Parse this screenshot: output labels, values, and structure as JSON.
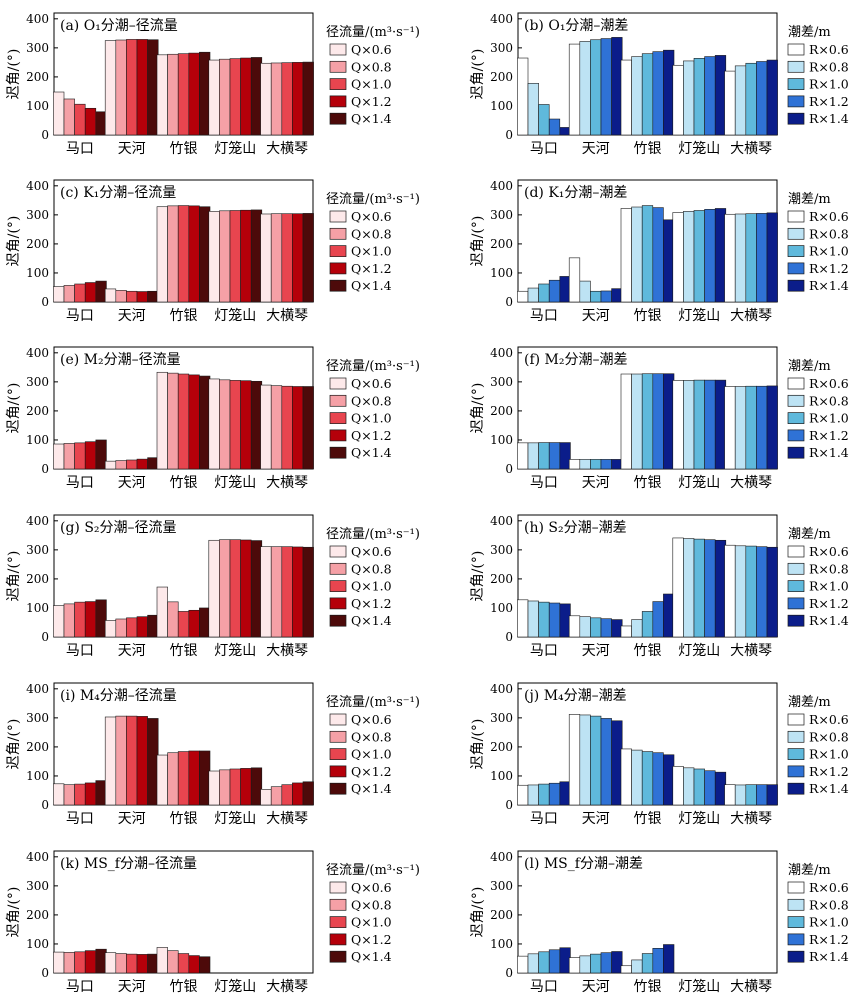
{
  "y_axis_label": "迟角/(°)",
  "y_ticks": [
    "0",
    "100",
    "200",
    "300",
    "400"
  ],
  "legends": {
    "Q": {
      "title": "径流量/(m³·s⁻¹)",
      "items": [
        "Q×0.6",
        "Q×0.8",
        "Q×1.0",
        "Q×1.2",
        "Q×1.4"
      ],
      "colors": [
        "#fde9ea",
        "#f5a0a6",
        "#e8454f",
        "#b5000a",
        "#4d0a0a"
      ]
    },
    "R": {
      "title": "潮差/m",
      "items": [
        "R×0.6",
        "R×0.8",
        "R×1.0",
        "R×1.2",
        "R×1.4"
      ],
      "colors": [
        "#ffffff",
        "#bde3f4",
        "#5fb9dc",
        "#2f72d6",
        "#0b1d8a"
      ]
    }
  },
  "chart_data": [
    {
      "type": "bar",
      "title": "(a) O₁分潮–径流量",
      "legend": "Q",
      "categories": [
        "马口",
        "天河",
        "竹银",
        "灯笼山",
        "大横琴"
      ],
      "ylim": [
        0,
        420
      ],
      "series": [
        {
          "name": "Q×0.6",
          "values": [
            148,
            325,
            276,
            258,
            247
          ]
        },
        {
          "name": "Q×0.8",
          "values": [
            124,
            327,
            278,
            261,
            248
          ]
        },
        {
          "name": "Q×1.0",
          "values": [
            106,
            329,
            280,
            263,
            249
          ]
        },
        {
          "name": "Q×1.2",
          "values": [
            92,
            329,
            282,
            265,
            250
          ]
        },
        {
          "name": "Q×1.4",
          "values": [
            80,
            328,
            285,
            267,
            251
          ]
        }
      ]
    },
    {
      "type": "bar",
      "title": "(b) O₁分潮–潮差",
      "legend": "R",
      "categories": [
        "马口",
        "天河",
        "竹银",
        "灯笼山",
        "大横琴"
      ],
      "ylim": [
        0,
        420
      ],
      "series": [
        {
          "name": "R×0.6",
          "values": [
            265,
            313,
            258,
            240,
            220
          ]
        },
        {
          "name": "R×0.8",
          "values": [
            178,
            322,
            270,
            255,
            238
          ]
        },
        {
          "name": "R×1.0",
          "values": [
            105,
            328,
            280,
            264,
            247
          ]
        },
        {
          "name": "R×1.2",
          "values": [
            55,
            332,
            287,
            270,
            253
          ]
        },
        {
          "name": "R×1.4",
          "values": [
            26,
            336,
            292,
            274,
            258
          ]
        }
      ]
    },
    {
      "type": "bar",
      "title": "(c) K₁分潮–径流量",
      "legend": "Q",
      "categories": [
        "马口",
        "天河",
        "竹银",
        "灯笼山",
        "大横琴"
      ],
      "ylim": [
        0,
        420
      ],
      "series": [
        {
          "name": "Q×0.6",
          "values": [
            53,
            45,
            328,
            312,
            303
          ]
        },
        {
          "name": "Q×0.8",
          "values": [
            57,
            40,
            331,
            314,
            304
          ]
        },
        {
          "name": "Q×1.0",
          "values": [
            62,
            37,
            332,
            315,
            304
          ]
        },
        {
          "name": "Q×1.2",
          "values": [
            67,
            36,
            331,
            316,
            304
          ]
        },
        {
          "name": "Q×1.4",
          "values": [
            72,
            37,
            328,
            317,
            305
          ]
        }
      ]
    },
    {
      "type": "bar",
      "title": "(d) K₁分潮–潮差",
      "legend": "R",
      "categories": [
        "马口",
        "天河",
        "竹银",
        "灯笼山",
        "大横琴"
      ],
      "ylim": [
        0,
        420
      ],
      "series": [
        {
          "name": "R×0.6",
          "values": [
            37,
            152,
            322,
            308,
            302
          ]
        },
        {
          "name": "R×0.8",
          "values": [
            48,
            72,
            327,
            312,
            303
          ]
        },
        {
          "name": "R×1.0",
          "values": [
            62,
            37,
            332,
            315,
            304
          ]
        },
        {
          "name": "R×1.2",
          "values": [
            75,
            38,
            325,
            319,
            305
          ]
        },
        {
          "name": "R×1.4",
          "values": [
            88,
            46,
            283,
            322,
            307
          ]
        }
      ]
    },
    {
      "type": "bar",
      "title": "(e) M₂分潮–径流量",
      "legend": "Q",
      "categories": [
        "马口",
        "天河",
        "竹银",
        "灯笼山",
        "大横琴"
      ],
      "ylim": [
        0,
        420
      ],
      "series": [
        {
          "name": "Q×0.6",
          "values": [
            86,
            27,
            333,
            310,
            289
          ]
        },
        {
          "name": "Q×0.8",
          "values": [
            88,
            29,
            330,
            307,
            287
          ]
        },
        {
          "name": "Q×1.0",
          "values": [
            90,
            31,
            327,
            305,
            285
          ]
        },
        {
          "name": "Q×1.2",
          "values": [
            94,
            34,
            324,
            304,
            284
          ]
        },
        {
          "name": "Q×1.4",
          "values": [
            100,
            39,
            320,
            302,
            284
          ]
        }
      ]
    },
    {
      "type": "bar",
      "title": "(f) M₂分潮–潮差",
      "legend": "R",
      "categories": [
        "马口",
        "天河",
        "竹银",
        "灯笼山",
        "大横琴"
      ],
      "ylim": [
        0,
        420
      ],
      "series": [
        {
          "name": "R×0.6",
          "values": [
            90,
            33,
            327,
            305,
            284
          ]
        },
        {
          "name": "R×0.8",
          "values": [
            90,
            33,
            327,
            305,
            284
          ]
        },
        {
          "name": "R×1.0",
          "values": [
            91,
            33,
            328,
            306,
            285
          ]
        },
        {
          "name": "R×1.2",
          "values": [
            91,
            33,
            328,
            306,
            285
          ]
        },
        {
          "name": "R×1.4",
          "values": [
            91,
            33,
            328,
            306,
            286
          ]
        }
      ]
    },
    {
      "type": "bar",
      "title": "(g) S₂分潮–径流量",
      "legend": "Q",
      "categories": [
        "马口",
        "天河",
        "竹银",
        "灯笼山",
        "大横琴"
      ],
      "ylim": [
        0,
        420
      ],
      "series": [
        {
          "name": "Q×0.6",
          "values": [
            108,
            57,
            172,
            333,
            311
          ]
        },
        {
          "name": "Q×0.8",
          "values": [
            114,
            62,
            121,
            335,
            311
          ]
        },
        {
          "name": "Q×1.0",
          "values": [
            120,
            66,
            88,
            335,
            311
          ]
        },
        {
          "name": "Q×1.2",
          "values": [
            122,
            70,
            92,
            334,
            310
          ]
        },
        {
          "name": "Q×1.4",
          "values": [
            128,
            75,
            100,
            332,
            309
          ]
        }
      ]
    },
    {
      "type": "bar",
      "title": "(h) S₂分潮–潮差",
      "legend": "R",
      "categories": [
        "马口",
        "天河",
        "竹银",
        "灯笼山",
        "大横琴"
      ],
      "ylim": [
        0,
        420
      ],
      "series": [
        {
          "name": "R×0.6",
          "values": [
            128,
            73,
            38,
            341,
            316
          ]
        },
        {
          "name": "R×0.8",
          "values": [
            124,
            70,
            60,
            339,
            314
          ]
        },
        {
          "name": "R×1.0",
          "values": [
            120,
            66,
            88,
            337,
            313
          ]
        },
        {
          "name": "R×1.2",
          "values": [
            117,
            63,
            122,
            335,
            311
          ]
        },
        {
          "name": "R×1.4",
          "values": [
            114,
            60,
            148,
            333,
            309
          ]
        }
      ]
    },
    {
      "type": "bar",
      "title": "(i) M₄分潮–径流量",
      "legend": "Q",
      "categories": [
        "马口",
        "天河",
        "竹银",
        "灯笼山",
        "大横琴"
      ],
      "ylim": [
        0,
        420
      ],
      "series": [
        {
          "name": "Q×0.6",
          "values": [
            73,
            303,
            172,
            117,
            54
          ]
        },
        {
          "name": "Q×0.8",
          "values": [
            70,
            306,
            180,
            121,
            63
          ]
        },
        {
          "name": "Q×1.0",
          "values": [
            72,
            306,
            184,
            124,
            70
          ]
        },
        {
          "name": "Q×1.2",
          "values": [
            76,
            305,
            186,
            126,
            76
          ]
        },
        {
          "name": "Q×1.4",
          "values": [
            84,
            298,
            186,
            128,
            80
          ]
        }
      ]
    },
    {
      "type": "bar",
      "title": "(j) M₄分潮–潮差",
      "legend": "R",
      "categories": [
        "马口",
        "天河",
        "竹银",
        "灯笼山",
        "大横琴"
      ],
      "ylim": [
        0,
        420
      ],
      "series": [
        {
          "name": "R×0.6",
          "values": [
            68,
            312,
            193,
            133,
            70
          ]
        },
        {
          "name": "R×0.8",
          "values": [
            69,
            310,
            189,
            128,
            69
          ]
        },
        {
          "name": "R×1.0",
          "values": [
            72,
            306,
            184,
            124,
            70
          ]
        },
        {
          "name": "R×1.2",
          "values": [
            75,
            298,
            180,
            118,
            70
          ]
        },
        {
          "name": "R×1.4",
          "values": [
            80,
            290,
            173,
            113,
            70
          ]
        }
      ]
    },
    {
      "type": "bar",
      "title": "(k) MS_f分潮–径流量",
      "legend": "Q",
      "categories": [
        "马口",
        "天河",
        "竹银",
        "灯笼山",
        "大横琴"
      ],
      "ylim": [
        0,
        420
      ],
      "series": [
        {
          "name": "Q×0.6",
          "values": [
            72,
            70,
            88,
            0,
            0
          ]
        },
        {
          "name": "Q×0.8",
          "values": [
            71,
            67,
            77,
            0,
            0
          ]
        },
        {
          "name": "Q×1.0",
          "values": [
            73,
            65,
            67,
            0,
            0
          ]
        },
        {
          "name": "Q×1.2",
          "values": [
            77,
            64,
            60,
            0,
            0
          ]
        },
        {
          "name": "Q×1.4",
          "values": [
            82,
            65,
            56,
            0,
            0
          ]
        }
      ]
    },
    {
      "type": "bar",
      "title": "(l) MS_f分潮–潮差",
      "legend": "R",
      "categories": [
        "马口",
        "天河",
        "竹银",
        "灯笼山",
        "大横琴"
      ],
      "ylim": [
        0,
        420
      ],
      "series": [
        {
          "name": "R×0.6",
          "values": [
            58,
            53,
            25,
            0,
            0
          ]
        },
        {
          "name": "R×0.8",
          "values": [
            66,
            59,
            45,
            0,
            0
          ]
        },
        {
          "name": "R×1.0",
          "values": [
            73,
            65,
            67,
            0,
            0
          ]
        },
        {
          "name": "R×1.2",
          "values": [
            80,
            70,
            85,
            0,
            0
          ]
        },
        {
          "name": "R×1.4",
          "values": [
            87,
            74,
            98,
            0,
            0
          ]
        }
      ]
    }
  ]
}
